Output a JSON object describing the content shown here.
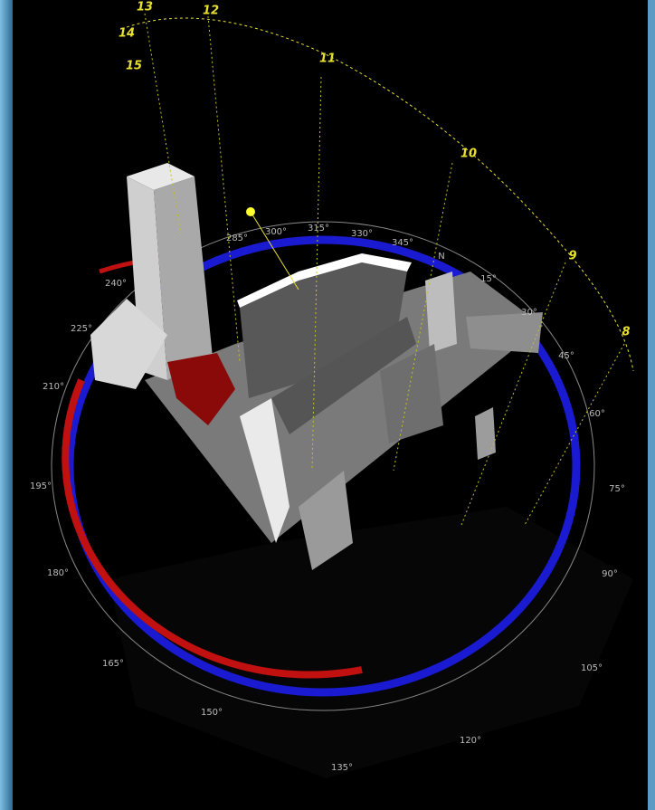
{
  "hour_labels": [
    "13",
    "12",
    "11",
    "10",
    "9",
    "8",
    "14",
    "15"
  ],
  "compass_labels": [
    "285°",
    "300°",
    "315°",
    "330°",
    "345°",
    "N",
    "15°",
    "30°",
    "45°",
    "60°",
    "75°",
    "90°",
    "105°",
    "120°",
    "135°",
    "150°",
    "165°",
    "180°",
    "195°",
    "210°",
    "225°",
    "240°"
  ]
}
